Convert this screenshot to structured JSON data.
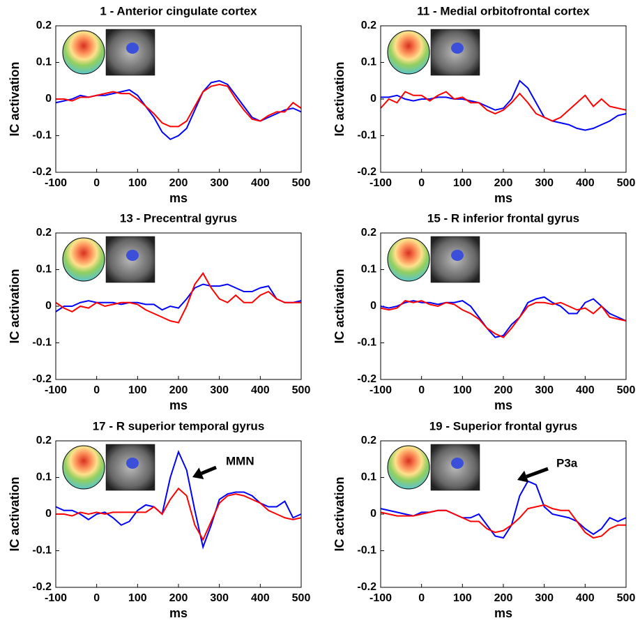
{
  "chart_data": [
    {
      "type": "line",
      "title": "1 - Anterior cingulate cortex",
      "xlabel": "ms",
      "ylabel": "IC activation",
      "x": [
        -100,
        -80,
        -60,
        -40,
        -20,
        0,
        20,
        40,
        60,
        80,
        100,
        120,
        140,
        160,
        180,
        200,
        220,
        240,
        260,
        280,
        300,
        320,
        340,
        360,
        380,
        400,
        420,
        440,
        460,
        480,
        500
      ],
      "xlim": [
        -100,
        500
      ],
      "ylim": [
        -0.2,
        0.2
      ],
      "xticks": [
        -100,
        0,
        100,
        200,
        300,
        400,
        500
      ],
      "yticks": [
        -0.2,
        -0.1,
        0,
        0.1,
        0.2
      ],
      "series": [
        {
          "color": "#0000ff",
          "values": [
            -0.01,
            -0.005,
            0,
            0.01,
            0.005,
            0.01,
            0.01,
            0.015,
            0.02,
            0.025,
            0.01,
            -0.02,
            -0.05,
            -0.09,
            -0.11,
            -0.1,
            -0.08,
            -0.03,
            0.02,
            0.045,
            0.05,
            0.04,
            0.01,
            -0.02,
            -0.05,
            -0.06,
            -0.05,
            -0.04,
            -0.03,
            -0.025,
            -0.035
          ]
        },
        {
          "color": "#ff0000",
          "values": [
            0,
            0,
            -0.005,
            0.005,
            0.005,
            0.01,
            0.015,
            0.02,
            0.015,
            0.015,
            0,
            -0.02,
            -0.04,
            -0.065,
            -0.075,
            -0.075,
            -0.06,
            -0.02,
            0.02,
            0.035,
            0.04,
            0.035,
            0,
            -0.03,
            -0.055,
            -0.06,
            -0.045,
            -0.035,
            -0.035,
            -0.01,
            -0.025
          ]
        }
      ]
    },
    {
      "type": "line",
      "title": "11 - Medial orbitofrontal cortex",
      "xlabel": "ms",
      "ylabel": "IC activation",
      "x": [
        -100,
        -80,
        -60,
        -40,
        -20,
        0,
        20,
        40,
        60,
        80,
        100,
        120,
        140,
        160,
        180,
        200,
        220,
        240,
        260,
        280,
        300,
        320,
        340,
        360,
        380,
        400,
        420,
        440,
        460,
        480,
        500
      ],
      "xlim": [
        -100,
        500
      ],
      "ylim": [
        -0.2,
        0.2
      ],
      "xticks": [
        -100,
        0,
        100,
        200,
        300,
        400,
        500
      ],
      "yticks": [
        -0.2,
        -0.1,
        0,
        0.1,
        0.2
      ],
      "series": [
        {
          "color": "#0000ff",
          "values": [
            0.005,
            0.005,
            0.01,
            0,
            -0.005,
            0,
            0,
            0.005,
            0.005,
            0,
            0,
            -0.005,
            -0.01,
            -0.02,
            -0.03,
            -0.025,
            0,
            0.05,
            0.03,
            -0.01,
            -0.05,
            -0.06,
            -0.065,
            -0.07,
            -0.08,
            -0.085,
            -0.08,
            -0.07,
            -0.06,
            -0.045,
            -0.04
          ]
        },
        {
          "color": "#ff0000",
          "values": [
            -0.025,
            0,
            -0.01,
            0.02,
            0.01,
            0.01,
            -0.005,
            0.01,
            0.02,
            0,
            0.005,
            -0.01,
            -0.01,
            -0.03,
            -0.04,
            -0.03,
            -0.01,
            0.015,
            -0.01,
            -0.04,
            -0.05,
            -0.06,
            -0.05,
            -0.03,
            -0.01,
            0.01,
            -0.02,
            0,
            -0.02,
            -0.025,
            -0.03
          ]
        }
      ]
    },
    {
      "type": "line",
      "title": "13 - Precentral gyrus",
      "xlabel": "ms",
      "ylabel": "IC activation",
      "x": [
        -100,
        -80,
        -60,
        -40,
        -20,
        0,
        20,
        40,
        60,
        80,
        100,
        120,
        140,
        160,
        180,
        200,
        220,
        240,
        260,
        280,
        300,
        320,
        340,
        360,
        380,
        400,
        420,
        440,
        460,
        480,
        500
      ],
      "xlim": [
        -100,
        500
      ],
      "ylim": [
        -0.2,
        0.2
      ],
      "xticks": [
        -100,
        0,
        100,
        200,
        300,
        400,
        500
      ],
      "yticks": [
        -0.2,
        -0.1,
        0,
        0.1,
        0.2
      ],
      "series": [
        {
          "color": "#0000ff",
          "values": [
            -0.015,
            0,
            0,
            0.01,
            0.015,
            0.01,
            0.01,
            0.01,
            0.005,
            0.01,
            0.01,
            0.005,
            0.005,
            -0.01,
            0,
            -0.005,
            0.02,
            0.05,
            0.06,
            0.055,
            0.055,
            0.06,
            0.05,
            0.04,
            0.04,
            0.05,
            0.055,
            0.02,
            0.01,
            0.01,
            0.015
          ]
        },
        {
          "color": "#ff0000",
          "values": [
            0.01,
            -0.005,
            -0.015,
            0,
            -0.005,
            0.01,
            0,
            0.005,
            0.01,
            0.01,
            0.005,
            -0.01,
            -0.02,
            -0.03,
            -0.04,
            -0.045,
            0,
            0.06,
            0.09,
            0.05,
            0.02,
            0.01,
            0.03,
            0.01,
            0.01,
            0.03,
            0.04,
            0.02,
            0.01,
            0.01,
            0.01
          ]
        }
      ]
    },
    {
      "type": "line",
      "title": "15 - R inferior frontal gyrus",
      "xlabel": "ms",
      "ylabel": "IC activation",
      "x": [
        -100,
        -80,
        -60,
        -40,
        -20,
        0,
        20,
        40,
        60,
        80,
        100,
        120,
        140,
        160,
        180,
        200,
        220,
        240,
        260,
        280,
        300,
        320,
        340,
        360,
        380,
        400,
        420,
        440,
        460,
        480,
        500
      ],
      "xlim": [
        -100,
        500
      ],
      "ylim": [
        -0.2,
        0.2
      ],
      "xticks": [
        -100,
        0,
        100,
        200,
        300,
        400,
        500
      ],
      "yticks": [
        -0.2,
        -0.1,
        0,
        0.1,
        0.2
      ],
      "series": [
        {
          "color": "#0000ff",
          "values": [
            0,
            -0.005,
            0,
            0.01,
            0.015,
            0.01,
            0.01,
            0.005,
            0.01,
            0.01,
            0.015,
            0,
            -0.03,
            -0.06,
            -0.085,
            -0.08,
            -0.05,
            -0.03,
            0.01,
            0.02,
            0.025,
            0.01,
            0,
            -0.02,
            -0.02,
            0.01,
            0.02,
            0,
            -0.02,
            -0.03,
            -0.04
          ]
        },
        {
          "color": "#ff0000",
          "values": [
            -0.005,
            -0.01,
            -0.005,
            0.015,
            0.01,
            0.015,
            0.005,
            0,
            0.01,
            0.005,
            -0.01,
            -0.02,
            -0.035,
            -0.06,
            -0.075,
            -0.085,
            -0.06,
            -0.03,
            0,
            0.01,
            0.01,
            0.005,
            0.01,
            0,
            -0.01,
            -0.005,
            -0.02,
            0,
            -0.03,
            -0.035,
            -0.04
          ]
        }
      ]
    },
    {
      "type": "line",
      "title": "17 - R superior temporal gyrus",
      "xlabel": "ms",
      "ylabel": "IC activation",
      "annotation": "MMN",
      "x": [
        -100,
        -80,
        -60,
        -40,
        -20,
        0,
        20,
        40,
        60,
        80,
        100,
        120,
        140,
        160,
        180,
        200,
        220,
        240,
        260,
        280,
        300,
        320,
        340,
        360,
        380,
        400,
        420,
        440,
        460,
        480,
        500
      ],
      "xlim": [
        -100,
        500
      ],
      "ylim": [
        -0.2,
        0.2
      ],
      "xticks": [
        -100,
        0,
        100,
        200,
        300,
        400,
        500
      ],
      "yticks": [
        -0.2,
        -0.1,
        0,
        0.1,
        0.2
      ],
      "series": [
        {
          "color": "#0000ff",
          "values": [
            0.02,
            0.01,
            0.01,
            0,
            -0.015,
            0,
            0.005,
            -0.01,
            -0.03,
            -0.02,
            0.01,
            0.025,
            0.02,
            0,
            0.1,
            0.17,
            0.12,
            0.01,
            -0.09,
            -0.03,
            0.04,
            0.055,
            0.06,
            0.06,
            0.05,
            0.03,
            0.02,
            0.02,
            0.035,
            -0.01,
            0
          ]
        },
        {
          "color": "#ff0000",
          "values": [
            0,
            0,
            -0.005,
            0.005,
            0,
            0.005,
            0,
            0.005,
            0.005,
            0.005,
            0.005,
            0.005,
            0.02,
            0,
            0.04,
            0.07,
            0.05,
            -0.03,
            -0.07,
            -0.02,
            0.03,
            0.05,
            0.055,
            0.05,
            0.04,
            0.03,
            0.01,
            0,
            -0.01,
            -0.015,
            -0.01
          ]
        }
      ]
    },
    {
      "type": "line",
      "title": "19 - Superior frontal gyrus",
      "xlabel": "ms",
      "ylabel": "IC activation",
      "annotation": "P3a",
      "x": [
        -100,
        -80,
        -60,
        -40,
        -20,
        0,
        20,
        40,
        60,
        80,
        100,
        120,
        140,
        160,
        180,
        200,
        220,
        240,
        260,
        280,
        300,
        320,
        340,
        360,
        380,
        400,
        420,
        440,
        460,
        480,
        500
      ],
      "xlim": [
        -100,
        500
      ],
      "ylim": [
        -0.2,
        0.2
      ],
      "xticks": [
        -100,
        0,
        100,
        200,
        300,
        400,
        500
      ],
      "yticks": [
        -0.2,
        -0.1,
        0,
        0.1,
        0.2
      ],
      "series": [
        {
          "color": "#0000ff",
          "values": [
            0.015,
            0.01,
            0.005,
            0,
            -0.005,
            0.005,
            0.005,
            0.01,
            0.01,
            0,
            -0.01,
            -0.01,
            0,
            -0.03,
            -0.06,
            -0.065,
            -0.03,
            0.05,
            0.09,
            0.08,
            0.02,
            0,
            -0.005,
            -0.01,
            -0.02,
            -0.04,
            -0.055,
            -0.04,
            -0.01,
            -0.02,
            -0.01
          ]
        },
        {
          "color": "#ff0000",
          "values": [
            0.005,
            0,
            -0.005,
            -0.005,
            -0.005,
            0,
            0.005,
            0.01,
            0.01,
            0,
            -0.01,
            -0.02,
            -0.02,
            -0.04,
            -0.05,
            -0.045,
            -0.03,
            -0.01,
            0.015,
            0.02,
            0.025,
            0.015,
            0.01,
            0.01,
            -0.02,
            -0.05,
            -0.065,
            -0.06,
            -0.04,
            -0.03,
            -0.03
          ]
        }
      ]
    }
  ]
}
